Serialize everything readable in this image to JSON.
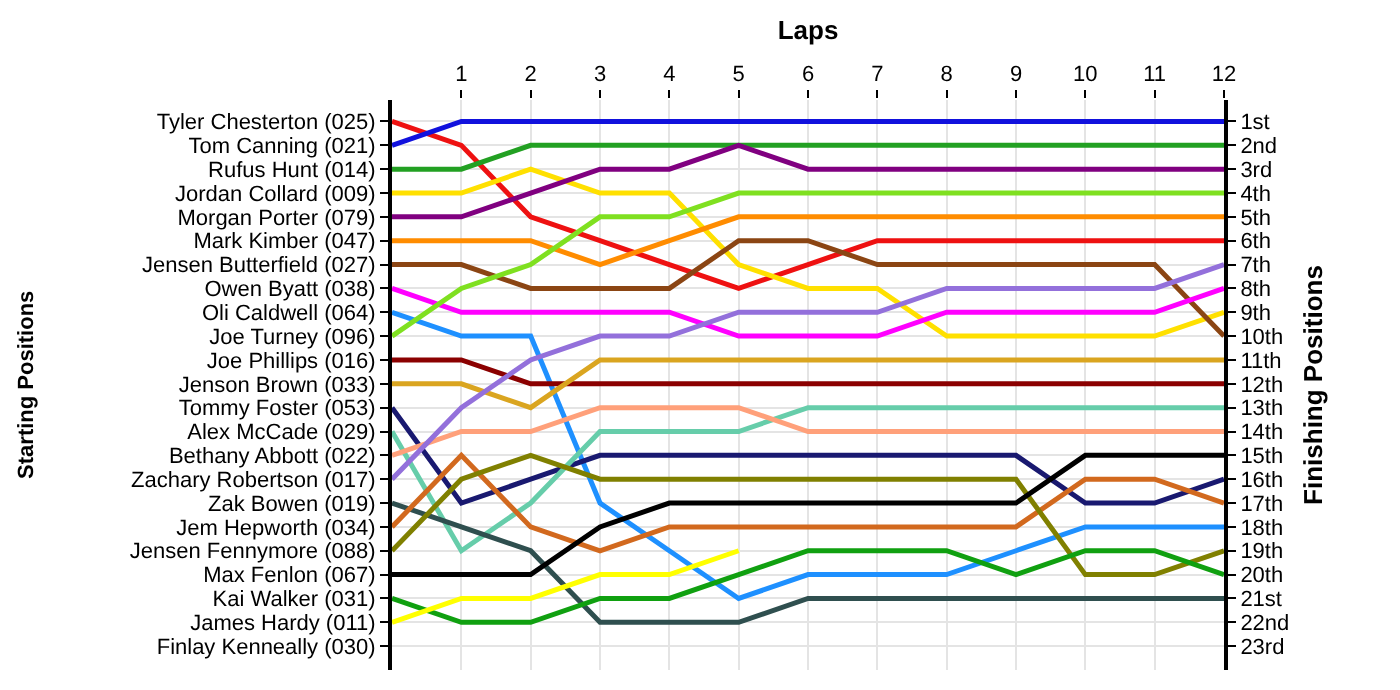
{
  "chart_data": {
    "type": "line",
    "xlabel": "Laps",
    "annotations": [
      "Starting Positions"
    ],
    "y2label": "Finishing Positions",
    "x": [
      0,
      1,
      2,
      3,
      4,
      5,
      6,
      7,
      8,
      9,
      10,
      11,
      12
    ],
    "xlim": [
      0,
      12
    ],
    "xticks": [
      1,
      2,
      3,
      4,
      5,
      6,
      7,
      8,
      9,
      10,
      11,
      12
    ],
    "y2lim": [
      24,
      0.1
    ],
    "y_categories": [
      "Tyler Chesterton (025)",
      "Tom Canning (021)",
      "Rufus Hunt (014)",
      "Jordan Collard (009)",
      "Morgan Porter (079)",
      "Mark Kimber (047)",
      "Jensen Butterfield (027)",
      "Owen Byatt (038)",
      "Oli Caldwell (064)",
      "Joe Turney (096)",
      "Joe Phillips (016)",
      "Jenson Brown (033)",
      "Tommy Foster (053)",
      "Alex McCade (029)",
      "Bethany Abbott (022)",
      "Zachary Robertson (017)",
      "Zak Bowen (019)",
      "Jem Hepworth (034)",
      "Jensen Fennymore (088)",
      "Max Fenlon (067)",
      "Kai Walker (031)",
      "James Hardy (011)",
      "Finlay Kenneally (030)"
    ],
    "y2ticks": [
      {
        "value": 1,
        "label": "1st"
      },
      {
        "value": 2,
        "label": "2nd"
      },
      {
        "value": 3,
        "label": "3rd"
      },
      {
        "value": 4,
        "label": "4th"
      },
      {
        "value": 5,
        "label": "5th"
      },
      {
        "value": 6,
        "label": "6th"
      },
      {
        "value": 7,
        "label": "7th"
      },
      {
        "value": 8,
        "label": "8th"
      },
      {
        "value": 9,
        "label": "9th"
      },
      {
        "value": 10,
        "label": "10th"
      },
      {
        "value": 11,
        "label": "11th"
      },
      {
        "value": 12,
        "label": "12th"
      },
      {
        "value": 13,
        "label": "13th"
      },
      {
        "value": 14,
        "label": "14th"
      },
      {
        "value": 15,
        "label": "15th"
      },
      {
        "value": 16,
        "label": "16th"
      },
      {
        "value": 17,
        "label": "17th"
      },
      {
        "value": 18,
        "label": "18th"
      },
      {
        "value": 19,
        "label": "19th"
      },
      {
        "value": 20,
        "label": "20th"
      },
      {
        "value": 21,
        "label": "21st"
      },
      {
        "value": 22,
        "label": "22nd"
      },
      {
        "value": 23,
        "label": "23rd"
      }
    ],
    "grid": true,
    "series": [
      {
        "axis": "y2",
        "color": "#ee1111",
        "values": [
          1,
          2,
          5,
          6,
          7,
          8,
          7,
          6,
          6,
          6,
          6,
          6,
          6
        ]
      },
      {
        "axis": "y2",
        "color": "#1111dd",
        "values": [
          2,
          1,
          1,
          1,
          1,
          1,
          1,
          1,
          1,
          1,
          1,
          1,
          1
        ]
      },
      {
        "axis": "y2",
        "color": "#22a022",
        "values": [
          3,
          3,
          2,
          2,
          2,
          2,
          2,
          2,
          2,
          2,
          2,
          2,
          2
        ]
      },
      {
        "axis": "y2",
        "color": "#ffe000",
        "values": [
          4,
          4,
          3,
          4,
          4,
          7,
          8,
          8,
          10,
          10,
          10,
          10,
          9
        ]
      },
      {
        "axis": "y2",
        "color": "#800080",
        "values": [
          5,
          5,
          4,
          3,
          3,
          2,
          3,
          3,
          3,
          3,
          3,
          3,
          3
        ]
      },
      {
        "axis": "y2",
        "color": "#ff8c00",
        "values": [
          6,
          6,
          6,
          7,
          6,
          5,
          5,
          5,
          5,
          5,
          5,
          5,
          5
        ]
      },
      {
        "axis": "y2",
        "color": "#8b4513",
        "values": [
          7,
          7,
          8,
          8,
          8,
          6,
          6,
          7,
          7,
          7,
          7,
          7,
          10
        ]
      },
      {
        "axis": "y2",
        "color": "#ff00ff",
        "values": [
          8,
          9,
          9,
          9,
          9,
          10,
          10,
          10,
          9,
          9,
          9,
          9,
          8
        ]
      },
      {
        "axis": "y2",
        "color": "#1e90ff",
        "values": [
          9,
          10,
          10,
          17,
          19,
          21,
          20,
          20,
          20,
          19,
          18,
          18,
          18
        ]
      },
      {
        "axis": "y2",
        "color": "#7fe020",
        "values": [
          10,
          8,
          7,
          5,
          5,
          4,
          4,
          4,
          4,
          4,
          4,
          4,
          4
        ]
      },
      {
        "axis": "y2",
        "color": "#8b0000",
        "values": [
          11,
          11,
          12,
          12,
          12,
          12,
          12,
          12,
          12,
          12,
          12,
          12,
          12
        ]
      },
      {
        "axis": "y2",
        "color": "#daa520",
        "values": [
          12,
          12,
          13,
          11,
          11,
          11,
          11,
          11,
          11,
          11,
          11,
          11,
          11
        ]
      },
      {
        "axis": "y2",
        "color": "#191970",
        "values": [
          13,
          17,
          16,
          15,
          15,
          15,
          15,
          15,
          15,
          15,
          17,
          17,
          16
        ]
      },
      {
        "axis": "y2",
        "color": "#66cdaa",
        "values": [
          14,
          19,
          17,
          14,
          14,
          14,
          13,
          13,
          13,
          13,
          13,
          13,
          13
        ]
      },
      {
        "axis": "y2",
        "color": "#ffa07a",
        "values": [
          15,
          14,
          14,
          13,
          13,
          13,
          14,
          14,
          14,
          14,
          14,
          14,
          14
        ]
      },
      {
        "axis": "y2",
        "color": "#9370db",
        "values": [
          16,
          13,
          11,
          10,
          10,
          9,
          9,
          9,
          8,
          8,
          8,
          8,
          7
        ]
      },
      {
        "axis": "y2",
        "color": "#2f4f4f",
        "values": [
          17,
          18,
          19,
          22,
          22,
          22,
          21,
          21,
          21,
          21,
          21,
          21,
          21
        ]
      },
      {
        "axis": "y2",
        "color": "#d2691e",
        "values": [
          18,
          15,
          18,
          19,
          18,
          18,
          18,
          18,
          18,
          18,
          16,
          16,
          17
        ]
      },
      {
        "axis": "y2",
        "color": "#808000",
        "values": [
          19,
          16,
          15,
          16,
          16,
          16,
          16,
          16,
          16,
          16,
          20,
          20,
          19
        ]
      },
      {
        "axis": "y2",
        "color": "#000000",
        "values": [
          20,
          20,
          20,
          18,
          17,
          17,
          17,
          17,
          17,
          17,
          15,
          15,
          15
        ]
      },
      {
        "axis": "y2",
        "color": "#10a010",
        "values": [
          21,
          22,
          22,
          21,
          21,
          20,
          19,
          19,
          19,
          20,
          19,
          19,
          20
        ]
      },
      {
        "axis": "y2",
        "color": "#ffff00",
        "values": [
          22,
          21,
          21,
          20,
          20,
          19,
          null,
          null,
          null,
          null,
          null,
          null,
          null
        ]
      }
    ]
  }
}
